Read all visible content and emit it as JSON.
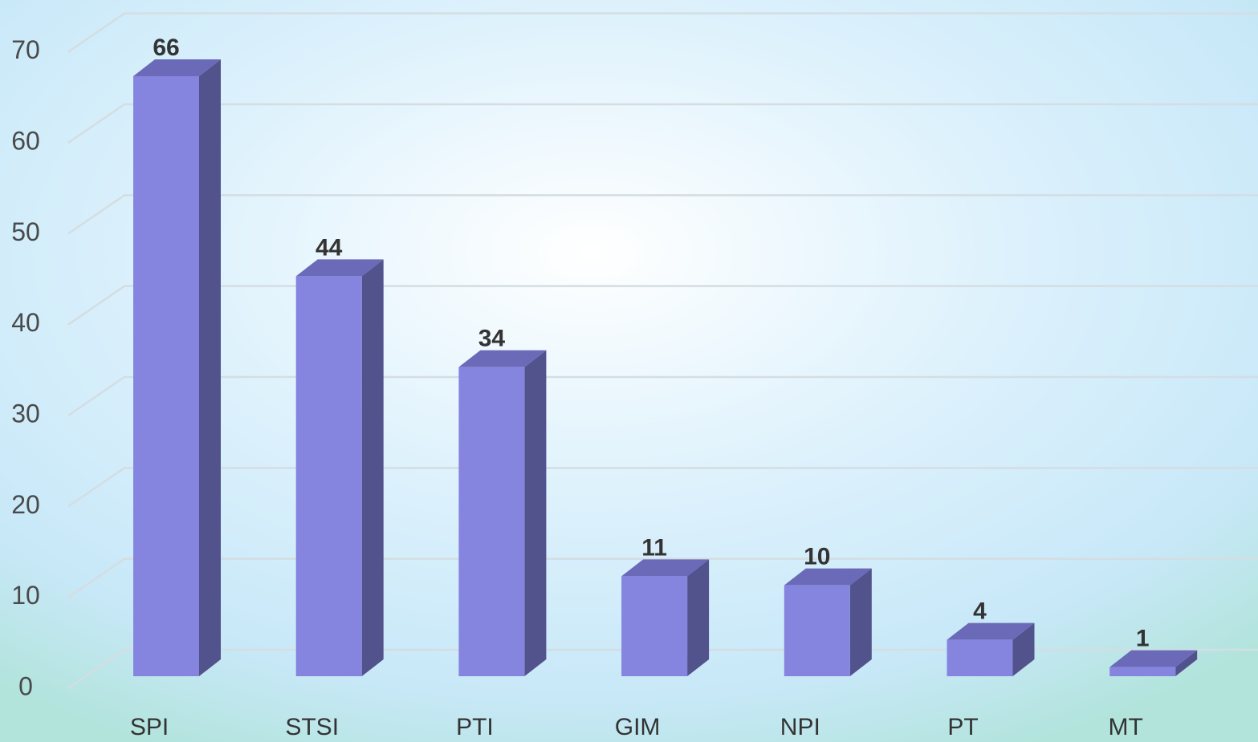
{
  "chart_data": {
    "type": "bar3d",
    "categories": [
      "SPI",
      "STSI",
      "PTI",
      "GIM",
      "NPI",
      "PT",
      "MT"
    ],
    "values": [
      66,
      44,
      34,
      11,
      10,
      4,
      1
    ],
    "color": "#8585e0",
    "ylim": [
      0,
      70
    ],
    "yticks": [
      0,
      10,
      20,
      30,
      40,
      50,
      60,
      70
    ],
    "grid": true
  }
}
